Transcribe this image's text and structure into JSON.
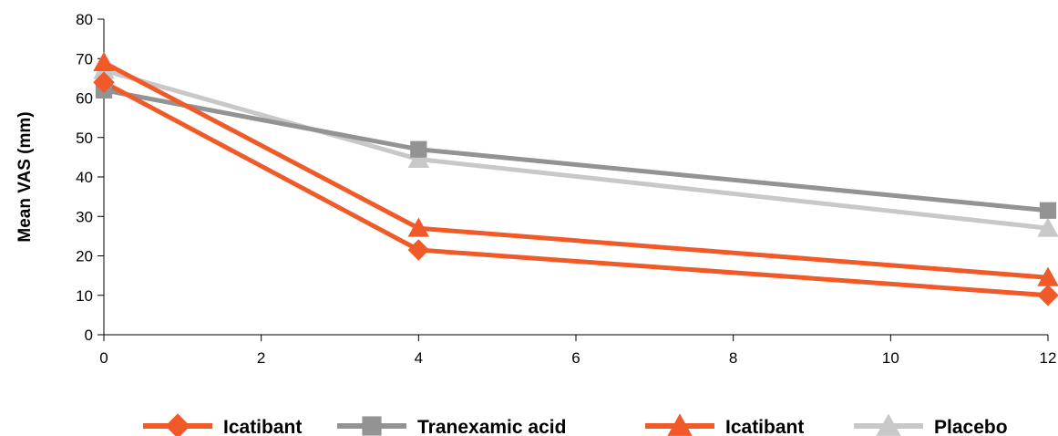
{
  "chart_data": {
    "type": "line",
    "title": "",
    "xlabel": "",
    "ylabel": "Mean VAS (mm)",
    "xlim": [
      0,
      12
    ],
    "ylim": [
      0,
      80
    ],
    "x_ticks": [
      0,
      2,
      4,
      6,
      8,
      10,
      12
    ],
    "y_ticks": [
      0,
      10,
      20,
      30,
      40,
      50,
      60,
      70,
      80
    ],
    "grid": false,
    "legend_position": "bottom",
    "series": [
      {
        "name": "Icatibant",
        "marker": "diamond",
        "color": "#f05a28",
        "x": [
          0,
          4,
          12
        ],
        "y": [
          64,
          21.5,
          10
        ]
      },
      {
        "name": "Tranexamic acid",
        "marker": "square",
        "color": "#939393",
        "x": [
          0,
          4,
          12
        ],
        "y": [
          62,
          47,
          31.5
        ]
      },
      {
        "name": "Icatibant",
        "marker": "triangle",
        "color": "#f05a28",
        "x": [
          0,
          4,
          12
        ],
        "y": [
          69,
          27,
          14.5
        ]
      },
      {
        "name": "Placebo",
        "marker": "triangle",
        "color": "#c8c8c8",
        "x": [
          0,
          4,
          12
        ],
        "y": [
          67,
          44.5,
          27
        ]
      }
    ]
  }
}
